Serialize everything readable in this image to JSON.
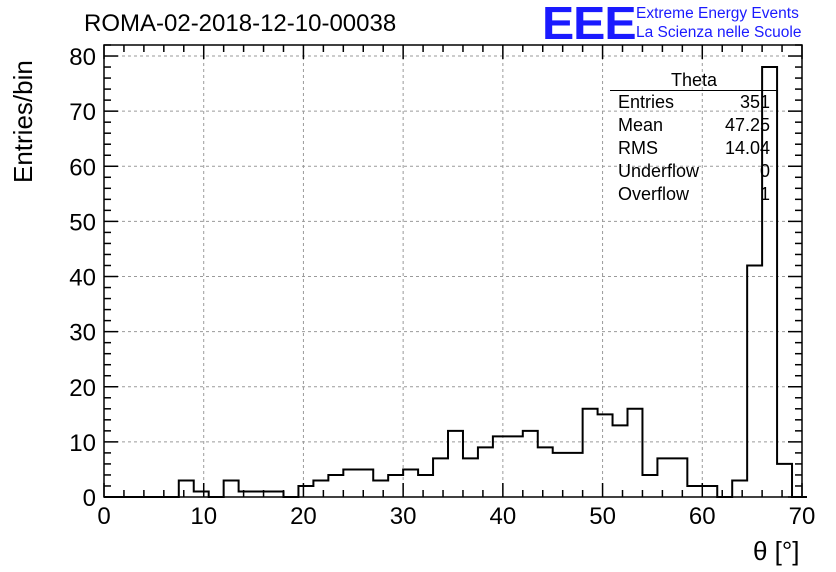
{
  "title": "ROMA-02-2018-12-10-00038",
  "brand": {
    "logo": "EEE",
    "line1": "Extreme Energy Events",
    "line2": "La Scienza nelle Scuole",
    "color": "#1a1aff"
  },
  "stats": {
    "name": "Theta",
    "rows": [
      {
        "label": "Entries",
        "value": "351"
      },
      {
        "label": "Mean",
        "value": "47.25"
      },
      {
        "label": "RMS",
        "value": "14.04"
      },
      {
        "label": "Underflow",
        "value": "0"
      },
      {
        "label": "Overflow",
        "value": "1"
      }
    ]
  },
  "chart_data": {
    "type": "histogram",
    "xlabel": "θ [°]",
    "ylabel": "Entries/bin",
    "xlim": [
      0,
      70
    ],
    "ylim": [
      0,
      82
    ],
    "xticks": [
      0,
      10,
      20,
      30,
      40,
      50,
      60,
      70
    ],
    "yticks": [
      0,
      10,
      20,
      30,
      40,
      50,
      60,
      70,
      80
    ],
    "grid": true,
    "bin_width": 1.5,
    "bin_start": 0,
    "values": [
      0,
      0,
      0,
      0,
      0,
      3,
      1,
      0,
      3,
      1,
      1,
      1,
      0,
      2,
      3,
      4,
      5,
      5,
      3,
      4,
      5,
      4,
      7,
      12,
      7,
      9,
      11,
      11,
      12,
      9,
      8,
      8,
      16,
      15,
      13,
      16,
      4,
      7,
      7,
      2,
      2,
      0,
      3,
      42,
      78,
      6,
      0
    ]
  }
}
